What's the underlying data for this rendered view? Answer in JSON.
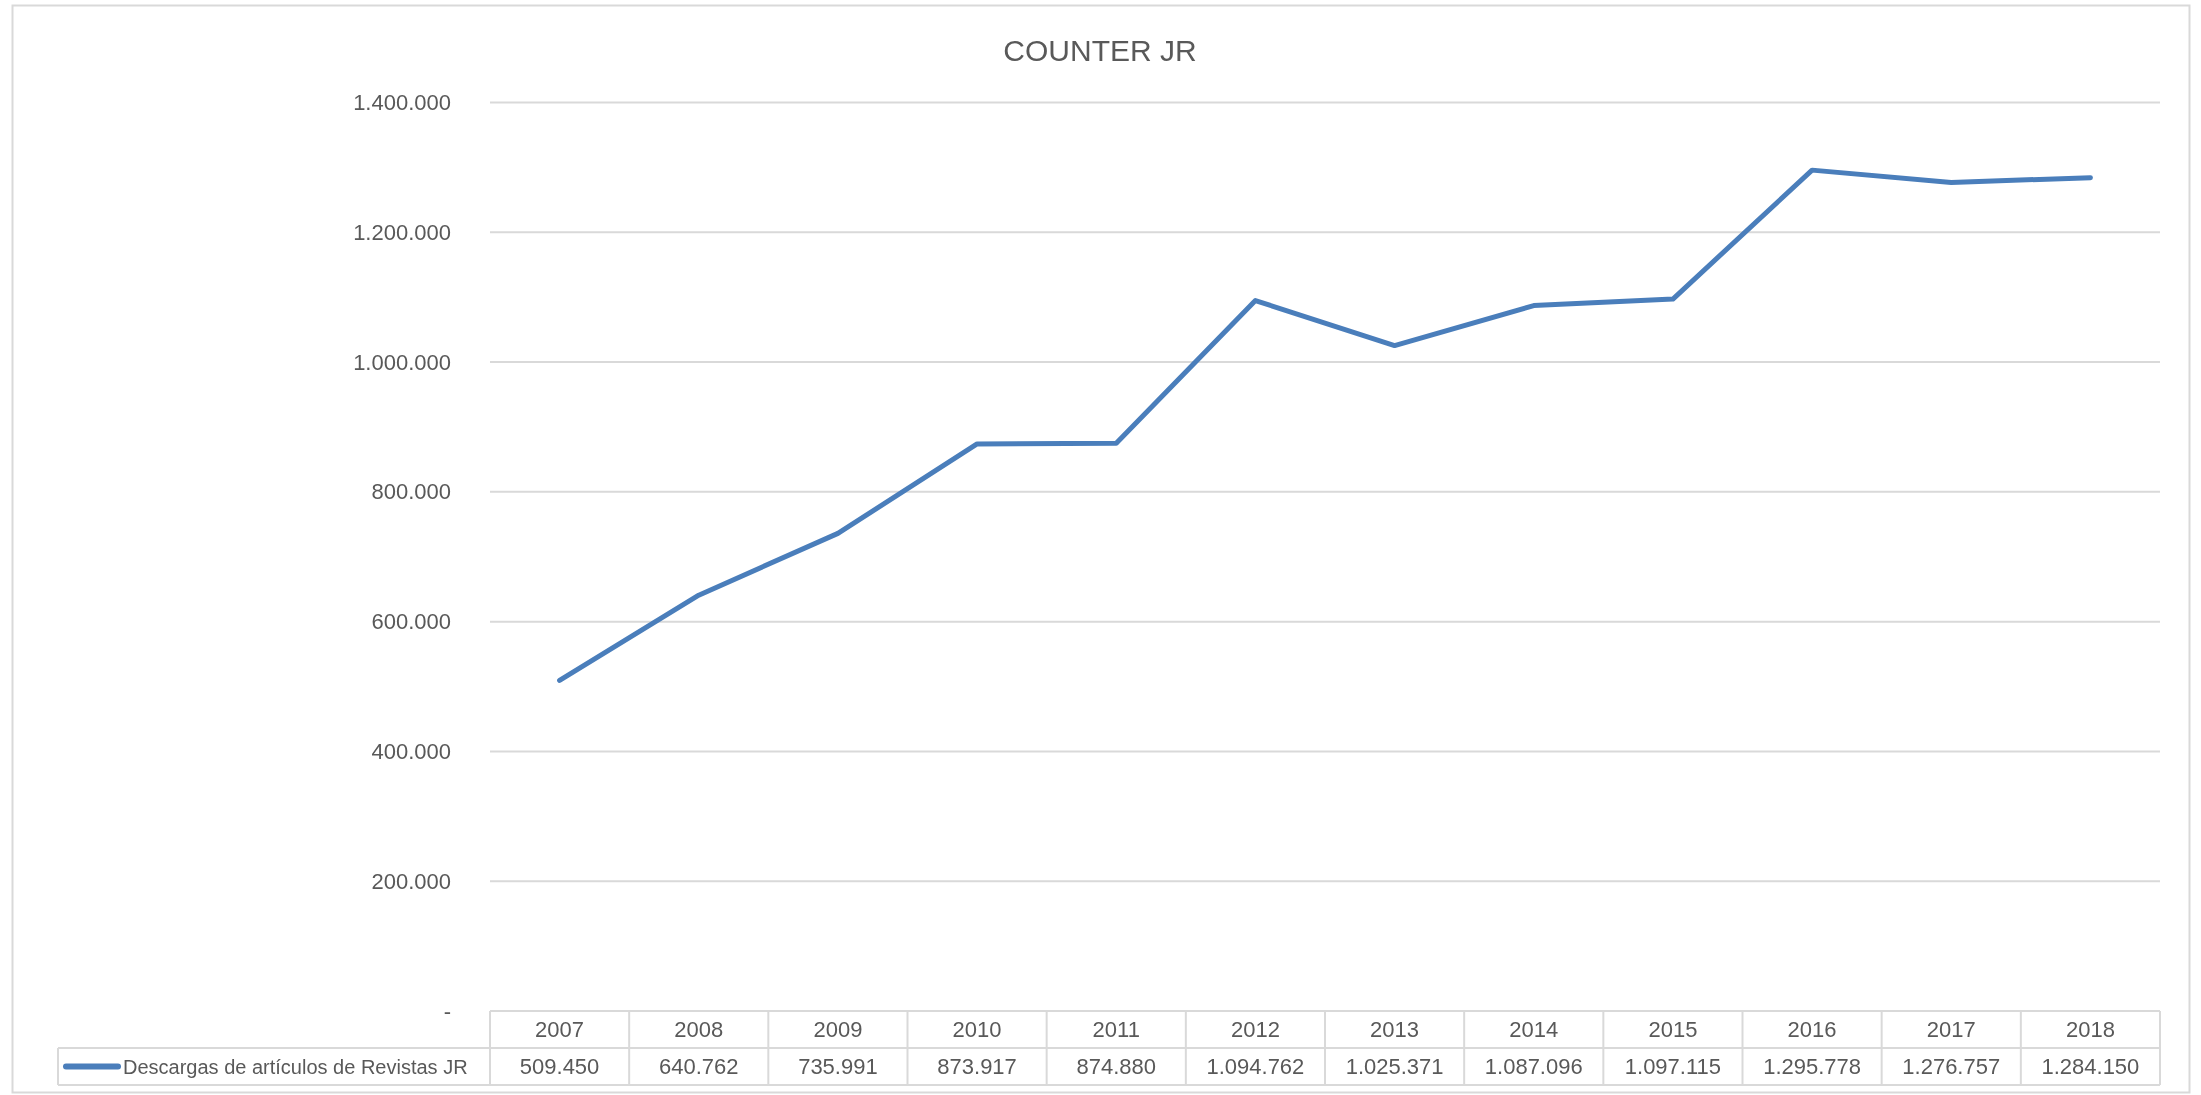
{
  "chart_data": {
    "type": "line",
    "title": "COUNTER JR",
    "categories": [
      "2007",
      "2008",
      "2009",
      "2010",
      "2011",
      "2012",
      "2013",
      "2014",
      "2015",
      "2016",
      "2017",
      "2018"
    ],
    "series": [
      {
        "name": "Descargas de artículos de Revistas JR",
        "color": "#4a7ebb",
        "values": [
          509450,
          640762,
          735991,
          873917,
          874880,
          1094762,
          1025371,
          1087096,
          1097115,
          1295778,
          1276757,
          1284150
        ],
        "value_labels": [
          "509.450",
          "640.762",
          "735.991",
          "873.917",
          "874.880",
          "1.094.762",
          "1.025.371",
          "1.087.096",
          "1.097.115",
          "1.295.778",
          "1.276.757",
          "1.284.150"
        ]
      }
    ],
    "ylim": [
      0,
      1400000
    ],
    "yticks": [
      {
        "value": 0,
        "label": "-"
      },
      {
        "value": 200000,
        "label": "200.000"
      },
      {
        "value": 400000,
        "label": "400.000"
      },
      {
        "value": 600000,
        "label": "600.000"
      },
      {
        "value": 800000,
        "label": "800.000"
      },
      {
        "value": 1000000,
        "label": "1.000.000"
      },
      {
        "value": 1200000,
        "label": "1.200.000"
      },
      {
        "value": 1400000,
        "label": "1.400.000"
      }
    ],
    "grid": "y",
    "legend": "bottom"
  }
}
